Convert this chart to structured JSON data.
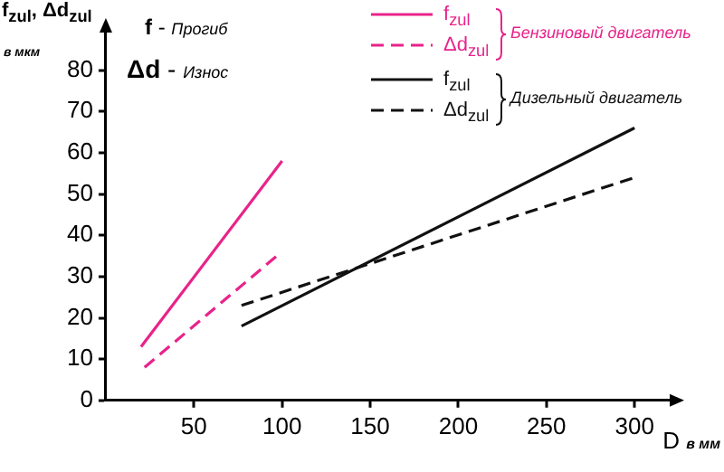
{
  "chart_data": {
    "type": "line",
    "ylabel": "f$_{zul}$, Δd$_{zul}$",
    "annotations": [
      "в мкм",
      "f - Прогиб",
      "Δd - Износ",
      "Бензиновый двигатель",
      "Дизельный двигатель"
    ],
    "xlabel": "D в мм",
    "xlim": [
      0,
      322
    ],
    "xticks": [
      50,
      100,
      150,
      200,
      250,
      300
    ],
    "ylim": [
      0,
      90
    ],
    "yticks": [
      0,
      10,
      20,
      30,
      40,
      50,
      60,
      70,
      80
    ],
    "grid": false,
    "legend": "top right",
    "marker": "none",
    "series": [
      {
        "name": "f$_{zul}$",
        "color": "#e8238a",
        "x": [
          20,
          100
        ],
        "values": [
          13,
          58
        ],
        "line_style": "solid"
      },
      {
        "name": "Δd$_{zul}$",
        "color": "#e8238a",
        "x": [
          22,
          97
        ],
        "values": [
          8,
          35
        ],
        "line_style": "dashed"
      },
      {
        "name": "f$_{zul}$",
        "color": "#111111",
        "x": [
          77,
          300
        ],
        "values": [
          18,
          66
        ],
        "line_style": "solid"
      },
      {
        "name": "Δd$_{zul}$",
        "color": "#111111",
        "x": [
          77,
          300
        ],
        "values": [
          23,
          54
        ],
        "line_style": "dashed"
      }
    ]
  }
}
